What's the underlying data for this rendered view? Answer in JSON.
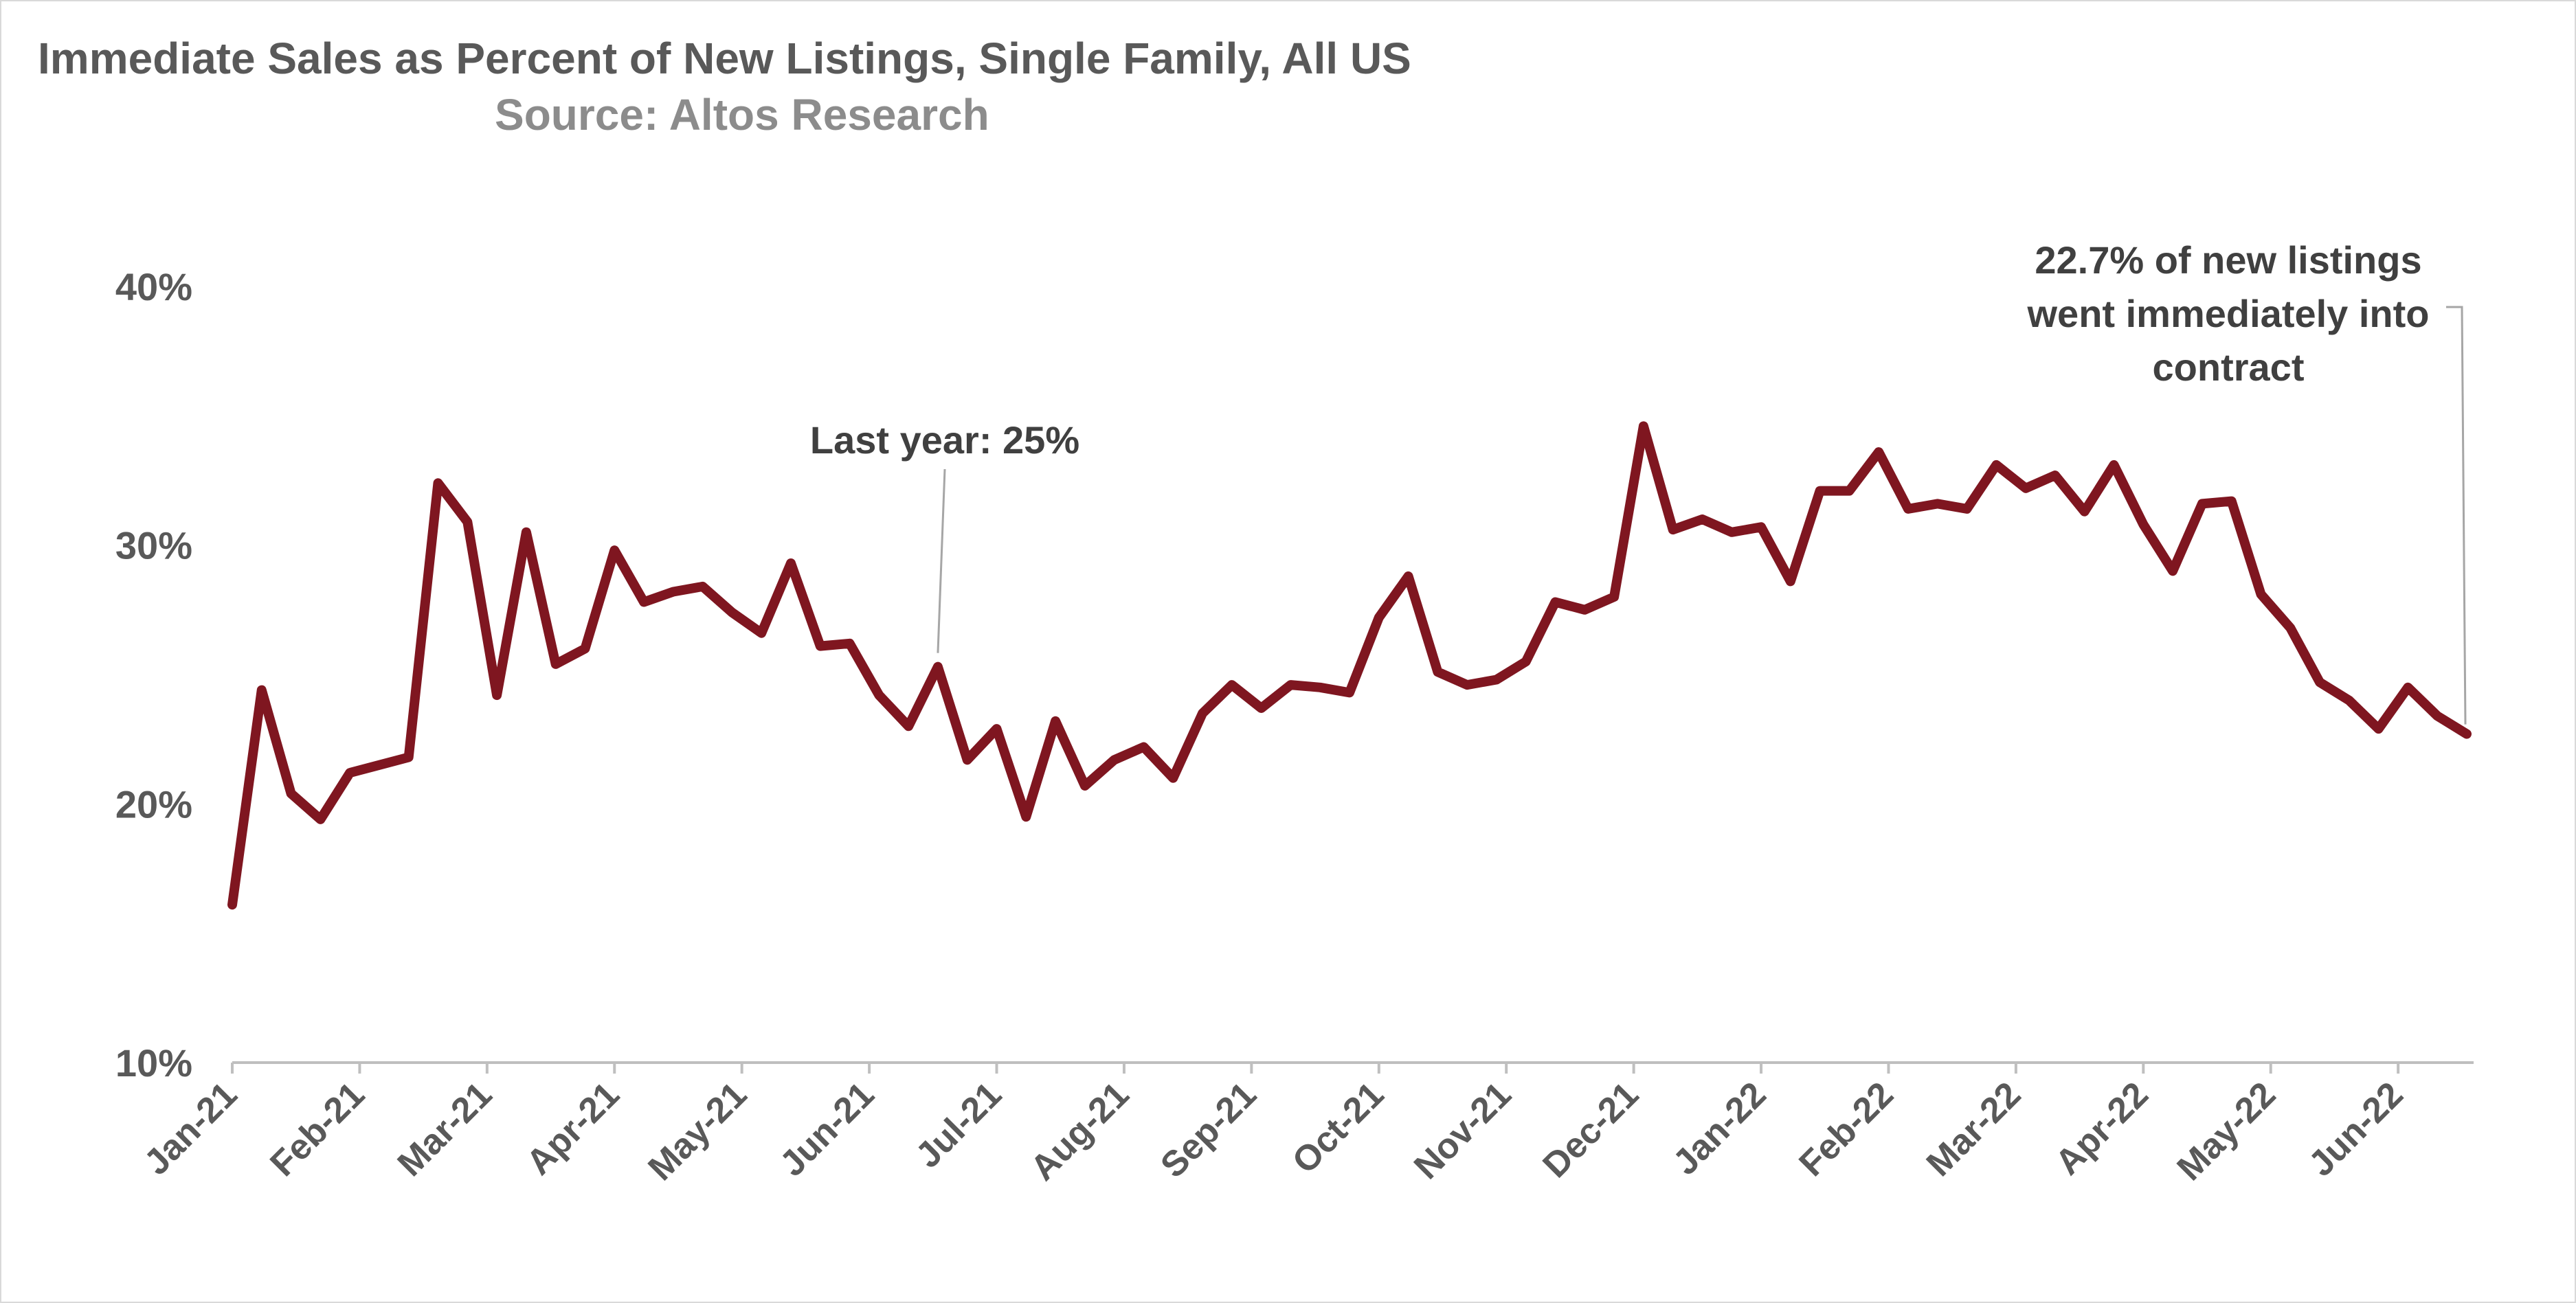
{
  "chart_data": {
    "type": "line",
    "title": "Immediate Sales as Percent of New Listings, Single Family, All US",
    "subtitle": "Source: Altos Research",
    "xlabel": "",
    "ylabel": "",
    "ylim": [
      10,
      40
    ],
    "yticks": [
      "10%",
      "20%",
      "30%",
      "40%"
    ],
    "xticks": [
      "Jan-21",
      "Feb-21",
      "Mar-21",
      "Apr-21",
      "May-21",
      "Jun-21",
      "Jul-21",
      "Aug-21",
      "Sep-21",
      "Oct-21",
      "Nov-21",
      "Dec-21",
      "Jan-22",
      "Feb-22",
      "Mar-22",
      "Apr-22",
      "May-22",
      "Jun-22"
    ],
    "grid": false,
    "line_color": "#7f1620",
    "series": [
      {
        "values": [
          16.1,
          24.4,
          20.4,
          19.4,
          21.2,
          21.5,
          21.8,
          32.4,
          30.9,
          24.2,
          30.5,
          25.4,
          26.0,
          29.8,
          27.8,
          28.2,
          28.4,
          27.4,
          26.6,
          29.3,
          26.1,
          26.2,
          24.2,
          23.0,
          25.3,
          21.7,
          22.9,
          19.5,
          23.2,
          20.7,
          21.7,
          22.2,
          21.0,
          23.5,
          24.6,
          23.7,
          24.6,
          24.5,
          24.3,
          27.2,
          28.8,
          25.1,
          24.6,
          24.8,
          25.5,
          27.8,
          27.5,
          28.0,
          34.6,
          30.6,
          31.0,
          30.5,
          30.7,
          28.6,
          32.1,
          32.1,
          33.6,
          31.4,
          31.6,
          31.4,
          33.1,
          32.2,
          32.7,
          31.3,
          33.1,
          30.8,
          29.0,
          31.6,
          31.7,
          28.1,
          26.8,
          24.7,
          24.0,
          22.9,
          24.5,
          23.4,
          22.7
        ]
      }
    ],
    "annotations": [
      {
        "text": "Last year: 25%",
        "point_index": 24
      },
      {
        "text_lines": [
          "22.7% of new listings",
          "went immediately into",
          "contract"
        ],
        "point_index": 76
      }
    ]
  }
}
